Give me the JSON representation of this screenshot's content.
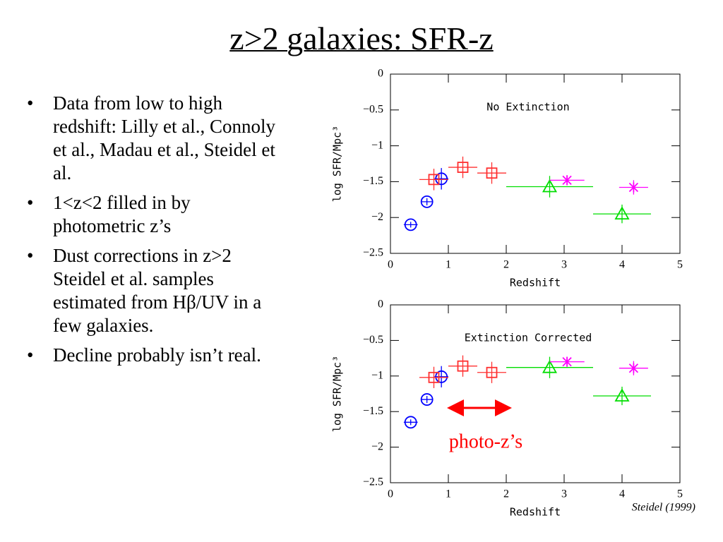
{
  "title": "z>2 galaxies: SFR-z",
  "bullets": [
    "Data from low to high redshift: Lilly et al., Connoly et al., Madau et al., Steidel et al.",
    "1<z<2 filled in by photometric z’s",
    "Dust corrections in z>2 Steidel et al. samples estimated from Hβ/UV in a few galaxies.",
    "Decline probably isn’t real."
  ],
  "annotation": "photo-z’s",
  "credit": "Steidel (1999)",
  "chart_data": [
    {
      "type": "scatter",
      "annotation": "No Extinction",
      "xlabel": "Redshift",
      "ylabel": "log SFR/Mpc³",
      "xlim": [
        0,
        5
      ],
      "ylim": [
        -2.5,
        0
      ],
      "xticks": [
        0,
        1,
        2,
        3,
        4,
        5
      ],
      "yticks": [
        0,
        {
          "value": -0.5,
          "label": "−0.5"
        },
        {
          "value": -1,
          "label": "−1"
        },
        {
          "value": -1.5,
          "label": "−1.5"
        },
        {
          "value": -2,
          "label": "−2"
        },
        {
          "value": -2.5,
          "label": "−2.5"
        }
      ],
      "series": [
        {
          "marker": "circle",
          "color": "#0000ff",
          "x": [
            0.35,
            0.63,
            0.88
          ],
          "values": [
            -2.1,
            -1.78,
            -1.46
          ],
          "xerr_minus": [
            0.12,
            0.1,
            0.12
          ],
          "xerr_plus": [
            0.12,
            0.1,
            0.12
          ],
          "yerr": [
            0.04,
            0.05,
            0.15
          ]
        },
        {
          "marker": "square",
          "color": "#ff3030",
          "x": [
            0.75,
            1.25,
            1.75
          ],
          "values": [
            -1.47,
            -1.3,
            -1.38
          ],
          "xerr_minus": [
            0.25,
            0.25,
            0.25
          ],
          "xerr_plus": [
            0.25,
            0.25,
            0.25
          ],
          "yerr": [
            0.15,
            0.15,
            0.15
          ]
        },
        {
          "marker": "triangle",
          "color": "#00dd00",
          "x": [
            2.75,
            4.0
          ],
          "values": [
            -1.57,
            -1.95
          ],
          "xerr_minus": [
            0.75,
            0.5
          ],
          "xerr_plus": [
            0.75,
            0.5
          ],
          "yerr": [
            0.15,
            0.13
          ]
        },
        {
          "marker": "star",
          "color": "#ff00ff",
          "x": [
            3.05,
            4.2
          ],
          "values": [
            -1.48,
            -1.58
          ],
          "xerr_minus": [
            0.3,
            0.25
          ],
          "xerr_plus": [
            0.3,
            0.25
          ],
          "yerr": [
            0.07,
            0.1
          ]
        }
      ]
    },
    {
      "type": "scatter",
      "annotation": "Extinction Corrected",
      "xlabel": "Redshift",
      "ylabel": "log SFR/Mpc³",
      "xlim": [
        0,
        5
      ],
      "ylim": [
        -2.5,
        0
      ],
      "xticks": [
        0,
        1,
        2,
        3,
        4,
        5
      ],
      "yticks": [
        0,
        {
          "value": -0.5,
          "label": "−0.5"
        },
        {
          "value": -1,
          "label": "−1"
        },
        {
          "value": -1.5,
          "label": "−1.5"
        },
        {
          "value": -2,
          "label": "−2"
        },
        {
          "value": -2.5,
          "label": "−2.5"
        }
      ],
      "series": [
        {
          "marker": "circle",
          "color": "#0000ff",
          "x": [
            0.35,
            0.63,
            0.88
          ],
          "values": [
            -1.65,
            -1.33,
            -1.01
          ],
          "xerr_minus": [
            0.12,
            0.1,
            0.12
          ],
          "xerr_plus": [
            0.12,
            0.1,
            0.12
          ],
          "yerr": [
            0.04,
            0.05,
            0.15
          ]
        },
        {
          "marker": "square",
          "color": "#ff3030",
          "x": [
            0.75,
            1.25,
            1.75
          ],
          "values": [
            -1.02,
            -0.86,
            -0.95
          ],
          "xerr_minus": [
            0.25,
            0.25,
            0.25
          ],
          "xerr_plus": [
            0.25,
            0.25,
            0.25
          ],
          "yerr": [
            0.15,
            0.15,
            0.15
          ]
        },
        {
          "marker": "triangle",
          "color": "#00dd00",
          "x": [
            2.75,
            4.0
          ],
          "values": [
            -0.88,
            -1.28
          ],
          "xerr_minus": [
            0.75,
            0.5
          ],
          "xerr_plus": [
            0.75,
            0.5
          ],
          "yerr": [
            0.15,
            0.13
          ]
        },
        {
          "marker": "star",
          "color": "#ff00ff",
          "x": [
            3.05,
            4.2
          ],
          "values": [
            -0.8,
            -0.89
          ],
          "xerr_minus": [
            0.3,
            0.25
          ],
          "xerr_plus": [
            0.3,
            0.25
          ],
          "yerr": [
            0.07,
            0.1
          ]
        }
      ]
    }
  ]
}
